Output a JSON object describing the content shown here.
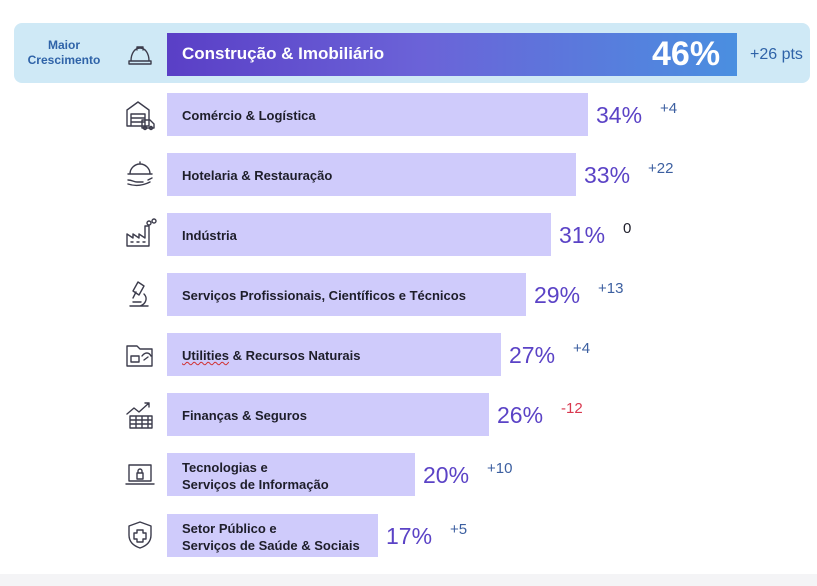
{
  "highlight_label": {
    "line1": "Maior",
    "line2": "Crescimento"
  },
  "colors": {
    "top_bar_start": "#5a3fc6",
    "top_bar_end": "#4a8fe0",
    "bar": "#cfcbfb",
    "percent": "#5b43c6",
    "positive": "#3c5fa0",
    "negative": "#d9384f",
    "highlight_bg": "#cfe9f6"
  },
  "chart_data": {
    "type": "bar",
    "orientation": "horizontal",
    "categories": [
      "Construção & Imobiliário",
      "Comércio & Logística",
      "Hotelaria & Restauração",
      "Indústria",
      "Serviços Profissionais, Científicos e Técnicos",
      "Utilities & Recursos Naturais",
      "Finanças & Seguros",
      "Tecnologias e Serviços de Informação",
      "Setor Público e Serviços de Saúde & Sociais"
    ],
    "values": [
      46,
      34,
      33,
      31,
      29,
      27,
      26,
      20,
      17
    ],
    "value_labels": [
      "46%",
      "34%",
      "33%",
      "31%",
      "29%",
      "27%",
      "26%",
      "20%",
      "17%"
    ],
    "changes": [
      26,
      4,
      22,
      0,
      13,
      4,
      -12,
      10,
      5
    ],
    "change_labels": [
      "+26 pts",
      "+4",
      "+22",
      "0",
      "+13",
      "+4",
      "-12",
      "+10",
      "+5"
    ],
    "icons": [
      "hard-hat-icon",
      "warehouse-truck-icon",
      "cloche-hand-icon",
      "factory-icon",
      "microscope-icon",
      "nature-folder-icon",
      "growth-chart-icon",
      "laptop-lock-icon",
      "shield-cross-icon"
    ],
    "label_lines": [
      [
        "Construção & Imobiliário"
      ],
      [
        "Comércio & Logística"
      ],
      [
        "Hotelaria & Restauração"
      ],
      [
        "Indústria"
      ],
      [
        "Serviços Profissionais, Científicos e Técnicos"
      ],
      [
        "Utilities & Recursos Naturais"
      ],
      [
        "Finanças & Seguros"
      ],
      [
        "Tecnologias e",
        "Serviços de Informação"
      ],
      [
        "Setor Público e",
        "Serviços de Saúde & Sociais"
      ]
    ]
  }
}
